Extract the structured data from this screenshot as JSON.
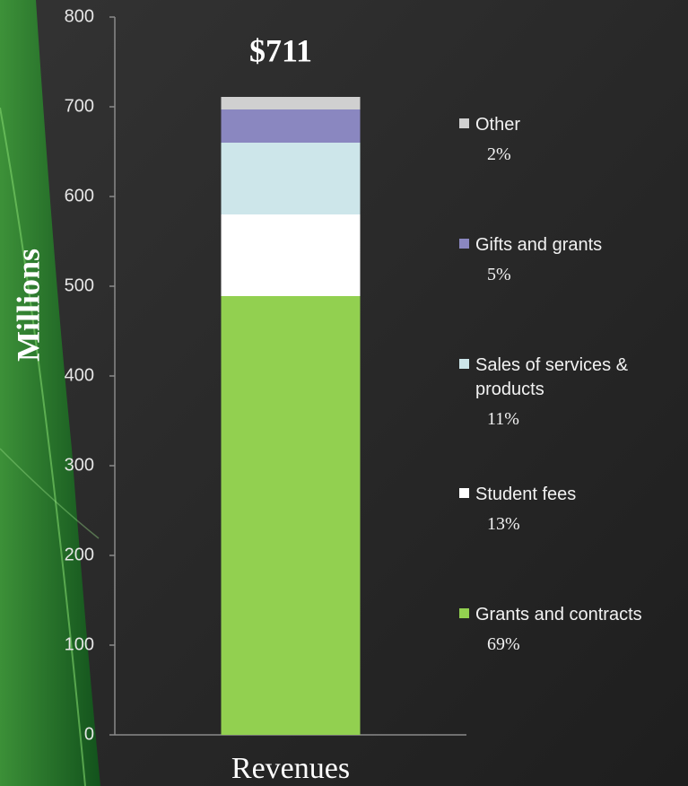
{
  "chart_data": {
    "type": "stacked-bar",
    "categories": [
      "Revenues"
    ],
    "y_label": "Millions",
    "annotation": "$711",
    "ylim": [
      0,
      800
    ],
    "yticks": [
      0,
      100,
      200,
      300,
      400,
      500,
      600,
      700,
      800
    ],
    "series": [
      {
        "name": "Grants and contracts",
        "color": "#92d050",
        "values": [
          489
        ],
        "share_labels": [
          "69%"
        ]
      },
      {
        "name": "Student fees",
        "color": "#ffffff",
        "values": [
          91
        ],
        "share_labels": [
          "13%"
        ]
      },
      {
        "name": "Sales of services & products",
        "color": "#cde6ea",
        "values": [
          80
        ],
        "share_labels": [
          "11%"
        ]
      },
      {
        "name": "Gifts and grants",
        "color": "#8a87c0",
        "values": [
          37
        ],
        "share_labels": [
          "5%"
        ]
      },
      {
        "name": "Other",
        "color": "#d0d0d0",
        "values": [
          14
        ],
        "share_labels": [
          "2%"
        ]
      }
    ]
  }
}
